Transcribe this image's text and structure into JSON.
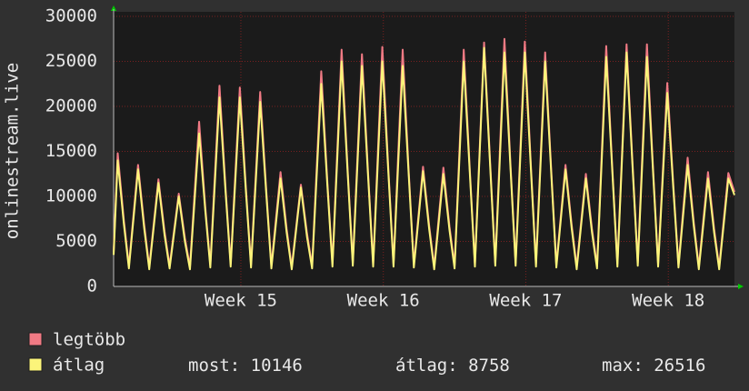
{
  "chart_data": {
    "type": "line",
    "ylabel": "onlinestream.live",
    "xlim": [
      0,
      30.5
    ],
    "ylim": [
      0,
      30000
    ],
    "yticks": [
      0,
      5000,
      10000,
      15000,
      20000,
      25000,
      30000
    ],
    "xticks": [
      {
        "value": 6.25,
        "label": "Week 15"
      },
      {
        "value": 13.25,
        "label": "Week 16"
      },
      {
        "value": 20.25,
        "label": "Week 17"
      },
      {
        "value": 27.25,
        "label": "Week 18"
      }
    ],
    "grid": true,
    "x": [
      0,
      0.2,
      0.5,
      0.75,
      1.2,
      1.5,
      1.75,
      2.2,
      2.5,
      2.75,
      3.2,
      3.5,
      3.75,
      4.2,
      4.5,
      4.75,
      5.2,
      5.5,
      5.75,
      6.2,
      6.5,
      6.75,
      7.2,
      7.5,
      7.75,
      8.2,
      8.5,
      8.75,
      9.2,
      9.5,
      9.75,
      10.2,
      10.5,
      10.75,
      11.2,
      11.5,
      11.75,
      12.2,
      12.5,
      12.75,
      13.2,
      13.5,
      13.75,
      14.2,
      14.5,
      14.75,
      15.2,
      15.5,
      15.75,
      16.2,
      16.5,
      16.75,
      17.2,
      17.5,
      17.75,
      18.2,
      18.5,
      18.75,
      19.2,
      19.5,
      19.75,
      20.2,
      20.5,
      20.75,
      21.2,
      21.5,
      21.75,
      22.2,
      22.5,
      22.75,
      23.2,
      23.5,
      23.75,
      24.2,
      24.5,
      24.75,
      25.2,
      25.5,
      25.75,
      26.2,
      26.5,
      26.75,
      27.2,
      27.5,
      27.75,
      28.2,
      28.5,
      28.75,
      29.2,
      29.5,
      29.75,
      30.2,
      30.5
    ],
    "series": [
      {
        "name": "legtöbb",
        "color": "#f07a84",
        "values": [
          3800,
          14800,
          7400,
          2300,
          13500,
          6900,
          2200,
          11900,
          6150,
          2300,
          10300,
          5400,
          2200,
          18300,
          8900,
          2400,
          22300,
          10900,
          2500,
          22100,
          10900,
          2400,
          21600,
          10650,
          2300,
          12700,
          6400,
          2200,
          11300,
          5900,
          2300,
          23900,
          11650,
          2500,
          26300,
          12900,
          2600,
          25800,
          12650,
          2500,
          26600,
          12900,
          2500,
          26300,
          12650,
          2400,
          13300,
          6800,
          2200,
          13200,
          6650,
          2300,
          26300,
          12900,
          2500,
          27100,
          13650,
          2600,
          27500,
          13400,
          2600,
          27200,
          13400,
          2500,
          26000,
          12900,
          2400,
          13500,
          6900,
          2200,
          12500,
          6400,
          2300,
          26700,
          13150,
          2500,
          26900,
          13400,
          2600,
          26900,
          13150,
          2500,
          22600,
          11150,
          2400,
          14300,
          7150,
          2200,
          12700,
          6400,
          2200,
          12600,
          10500
        ]
      },
      {
        "name": "átlag",
        "color": "#fbf47a",
        "values": [
          3500,
          14000,
          7000,
          2000,
          13000,
          6500,
          1900,
          11500,
          5750,
          2000,
          10000,
          5000,
          1900,
          17000,
          8500,
          2100,
          21000,
          10500,
          2200,
          21000,
          10500,
          2100,
          20500,
          10250,
          2000,
          12000,
          6000,
          1900,
          11000,
          5500,
          2000,
          22500,
          11250,
          2200,
          25000,
          12500,
          2300,
          24500,
          12250,
          2200,
          25000,
          12500,
          2200,
          24500,
          12250,
          2100,
          12800,
          6400,
          1900,
          12500,
          6250,
          2000,
          25000,
          12500,
          2200,
          26500,
          13250,
          2300,
          26000,
          13000,
          2300,
          26000,
          13000,
          2200,
          25000,
          12500,
          2100,
          13000,
          6500,
          1900,
          12000,
          6000,
          2000,
          25500,
          12750,
          2200,
          26000,
          13000,
          2300,
          25500,
          12750,
          2200,
          21500,
          10750,
          2100,
          13500,
          6750,
          1900,
          12000,
          6000,
          1900,
          12000,
          10146
        ]
      }
    ],
    "stats": [
      {
        "label": "most:",
        "value": 10146
      },
      {
        "label": "átlag:",
        "value": 8758
      },
      {
        "label": "max:",
        "value": 26516
      }
    ]
  }
}
